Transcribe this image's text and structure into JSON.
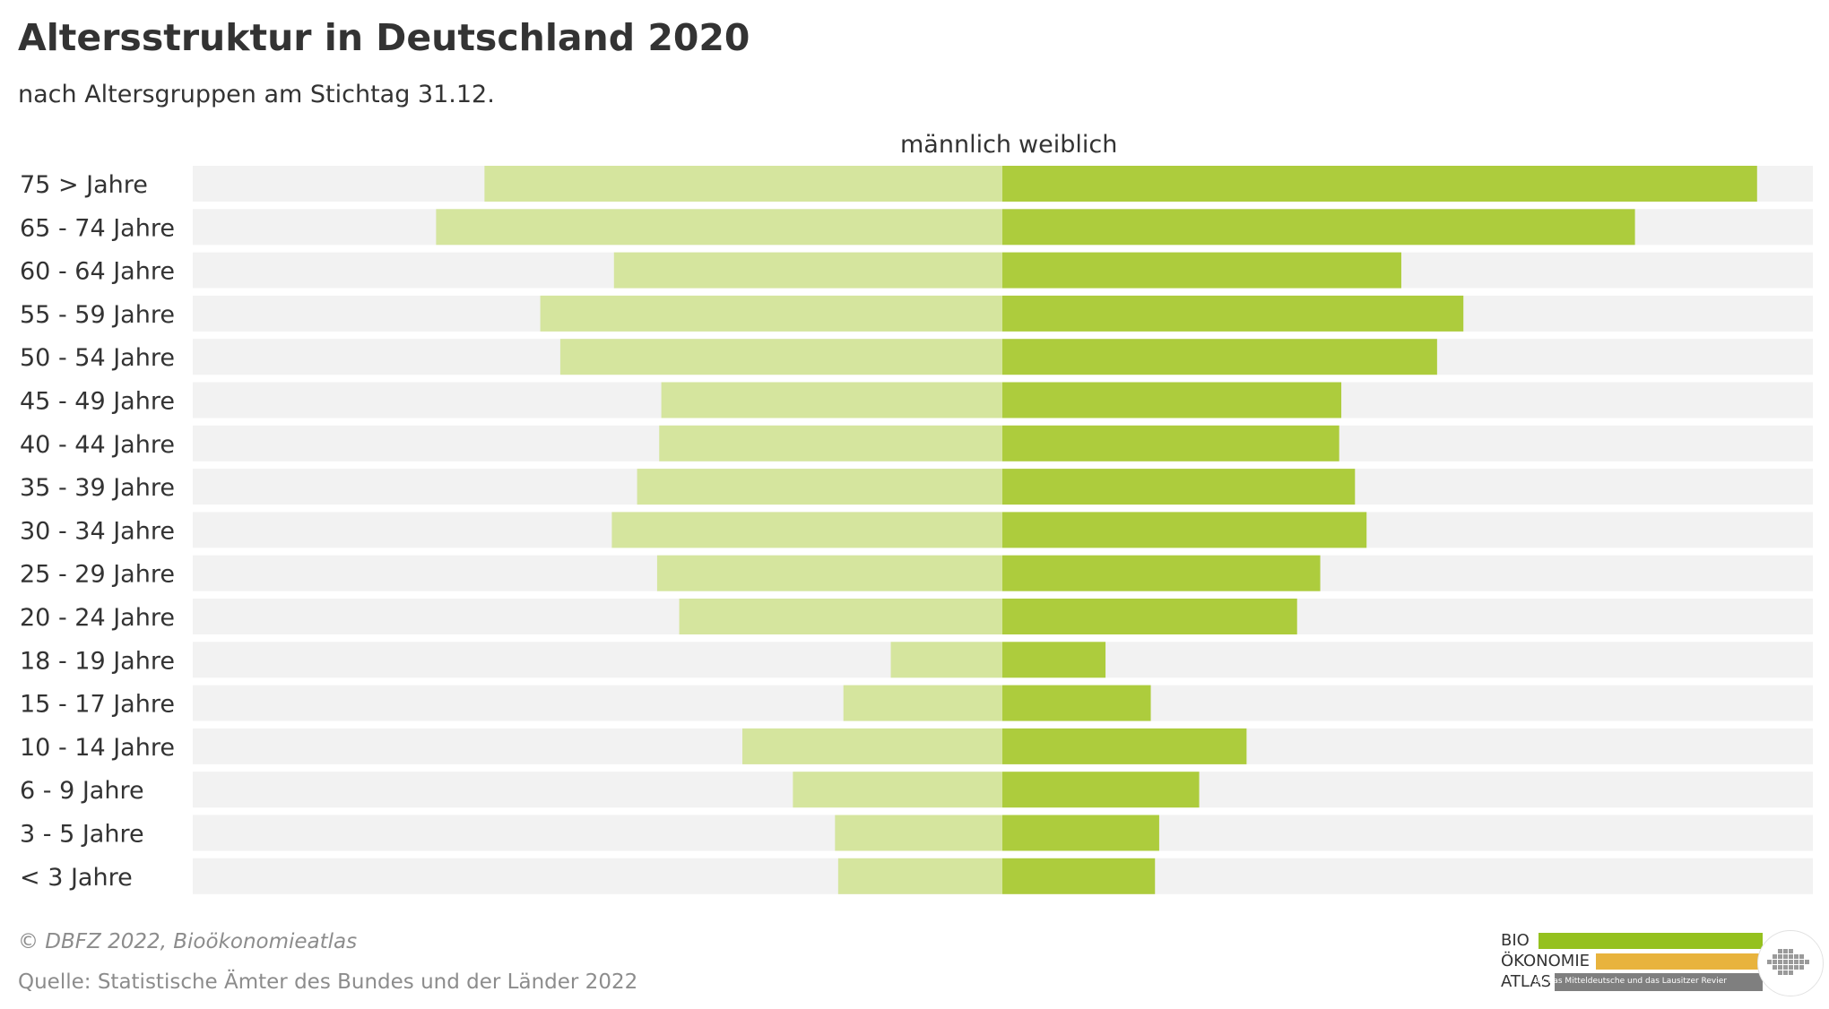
{
  "header": {
    "title": "Altersstruktur in Deutschland 2020",
    "subtitle": "nach Altersgruppen am Stichtag 31.12."
  },
  "legend": {
    "male_label": "männlich",
    "female_label": "weiblich"
  },
  "colors": {
    "male": "#d5e59e",
    "female": "#adcc3d",
    "track": "#f2f2f2",
    "text": "#333333",
    "footer_text": "#8c8c8c",
    "logo_green": "#95c11f",
    "logo_orange": "#e8b33d",
    "logo_grey": "#7f7f7f"
  },
  "chart_data": {
    "type": "bar",
    "orientation": "horizontal-diverging",
    "categories": [
      "75 > Jahre",
      "65 - 74 Jahre",
      "60 - 64 Jahre",
      "55 - 59 Jahre",
      "50 - 54 Jahre",
      "45 - 49 Jahre",
      "40 - 44 Jahre",
      "35 - 39 Jahre",
      "30 - 34 Jahre",
      "25 - 29 Jahre",
      "20 - 24 Jahre",
      "18 - 19 Jahre",
      "15 - 17 Jahre",
      "10 - 14 Jahre",
      "6 - 9 Jahre",
      "3 - 5 Jahre",
      "< 3 Jahre"
    ],
    "series": [
      {
        "name": "männlich",
        "side": "left",
        "values": [
          4.92,
          5.38,
          3.69,
          4.39,
          4.2,
          3.24,
          3.26,
          3.47,
          3.71,
          3.28,
          3.07,
          1.06,
          1.51,
          2.47,
          1.99,
          1.59,
          1.56
        ]
      },
      {
        "name": "weiblich",
        "side": "right",
        "values": [
          7.17,
          6.01,
          3.79,
          4.38,
          4.13,
          3.22,
          3.2,
          3.35,
          3.46,
          3.02,
          2.8,
          0.98,
          1.41,
          2.32,
          1.87,
          1.49,
          1.45
        ]
      }
    ],
    "xlim": [
      -7.7,
      7.7
    ],
    "axis_labels_shown": false,
    "grid": false,
    "legend_position": "top-center"
  },
  "footer": {
    "copyright": "© DBFZ 2022, Bioökonomieatlas",
    "source": "Quelle: Statistische Ämter des Bundes und der Länder 2022"
  },
  "logo": {
    "line1": "BIO",
    "line2": "ÖKONOMIE",
    "line3": "ATLAS",
    "tagline": "für das Mitteldeutsche und das Lausitzer Revier"
  }
}
